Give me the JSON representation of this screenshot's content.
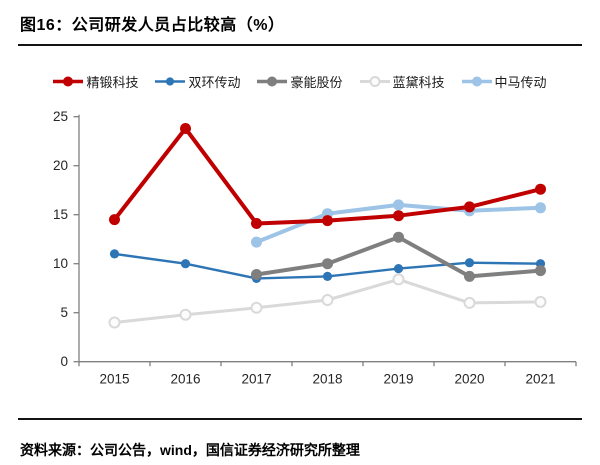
{
  "header": {
    "title": "图16：公司研发人员占比较高（%）"
  },
  "footer": {
    "source": "资料来源：公司公告，wind，国信证券经济研究所整理"
  },
  "colors": {
    "rule": "#141414",
    "axis": "#808080",
    "tick_label": "#262626",
    "background": "#ffffff"
  },
  "chart_data": {
    "type": "line",
    "title": "公司研发人员占比较高（%）",
    "categories": [
      "2015",
      "2016",
      "2017",
      "2018",
      "2019",
      "2020",
      "2021"
    ],
    "series": [
      {
        "name": "精锻科技",
        "color": "#C00000",
        "values": [
          14.5,
          23.8,
          14.1,
          14.4,
          14.9,
          15.8,
          17.6
        ]
      },
      {
        "name": "双环传动",
        "color": "#2E75B6",
        "values": [
          11.0,
          10.0,
          8.5,
          8.7,
          9.5,
          10.1,
          10.0
        ]
      },
      {
        "name": "豪能股份",
        "color": "#7F7F7F",
        "values": [
          null,
          null,
          8.9,
          10.0,
          12.7,
          8.7,
          9.3
        ]
      },
      {
        "name": "蓝黛科技",
        "color": "#D9D9D9",
        "values": [
          4.0,
          4.8,
          5.5,
          6.3,
          8.4,
          6.0,
          6.1
        ]
      },
      {
        "name": "中马传动",
        "color": "#9DC3E6",
        "values": [
          null,
          null,
          12.2,
          15.1,
          16.0,
          15.4,
          15.7
        ]
      }
    ],
    "ylim": [
      0,
      25
    ],
    "ytick_step": 5,
    "yticks": [
      0,
      5,
      10,
      15,
      20,
      25
    ],
    "xlabel": "",
    "ylabel": "",
    "grid": false,
    "legend_position": "top",
    "marker": "circle"
  }
}
